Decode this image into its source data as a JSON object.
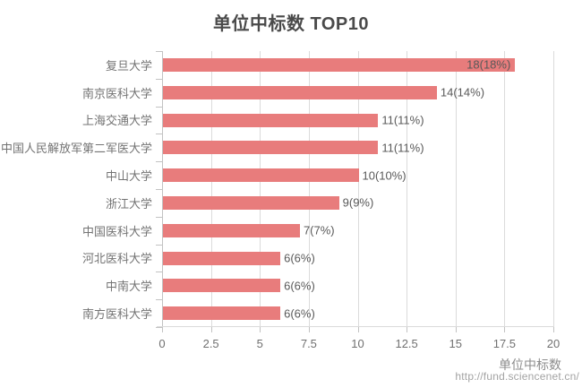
{
  "title": "单位中标数 TOP10",
  "chart_data": {
    "type": "bar",
    "orientation": "horizontal",
    "title": "单位中标数 TOP10",
    "xlabel": "单位中标数",
    "ylabel": "",
    "xlim": [
      0,
      20
    ],
    "xticks": [
      0,
      2.5,
      5,
      7.5,
      10,
      12.5,
      15,
      17.5,
      20
    ],
    "grid": true,
    "legend": "none",
    "bar_color": "#e87c7c",
    "categories": [
      "复旦大学",
      "南京医科大学",
      "上海交通大学",
      "中国人民解放军第二军医大学",
      "中山大学",
      "浙江大学",
      "中国医科大学",
      "河北医科大学",
      "中南大学",
      "南方医科大学"
    ],
    "values": [
      18,
      14,
      11,
      11,
      10,
      9,
      7,
      6,
      6,
      6
    ],
    "value_labels": [
      "18(18%)",
      "14(14%)",
      "11(11%)",
      "11(11%)",
      "10(10%)",
      "9(9%)",
      "7(7%)",
      "6(6%)",
      "6(6%)",
      "6(6%)"
    ]
  },
  "footer": {
    "xaxis_title": "单位中标数",
    "url": "http://fund.sciencenet.cn/"
  },
  "colors": {
    "bar": "#e87c7c",
    "grid": "#dbdbdb",
    "axis": "#c2c2c2",
    "title_text": "#4a4a4a",
    "category_text": "#737373",
    "value_text": "#595959",
    "xlabel_text": "#8c8c8c",
    "url_text": "#a3a3a3"
  }
}
